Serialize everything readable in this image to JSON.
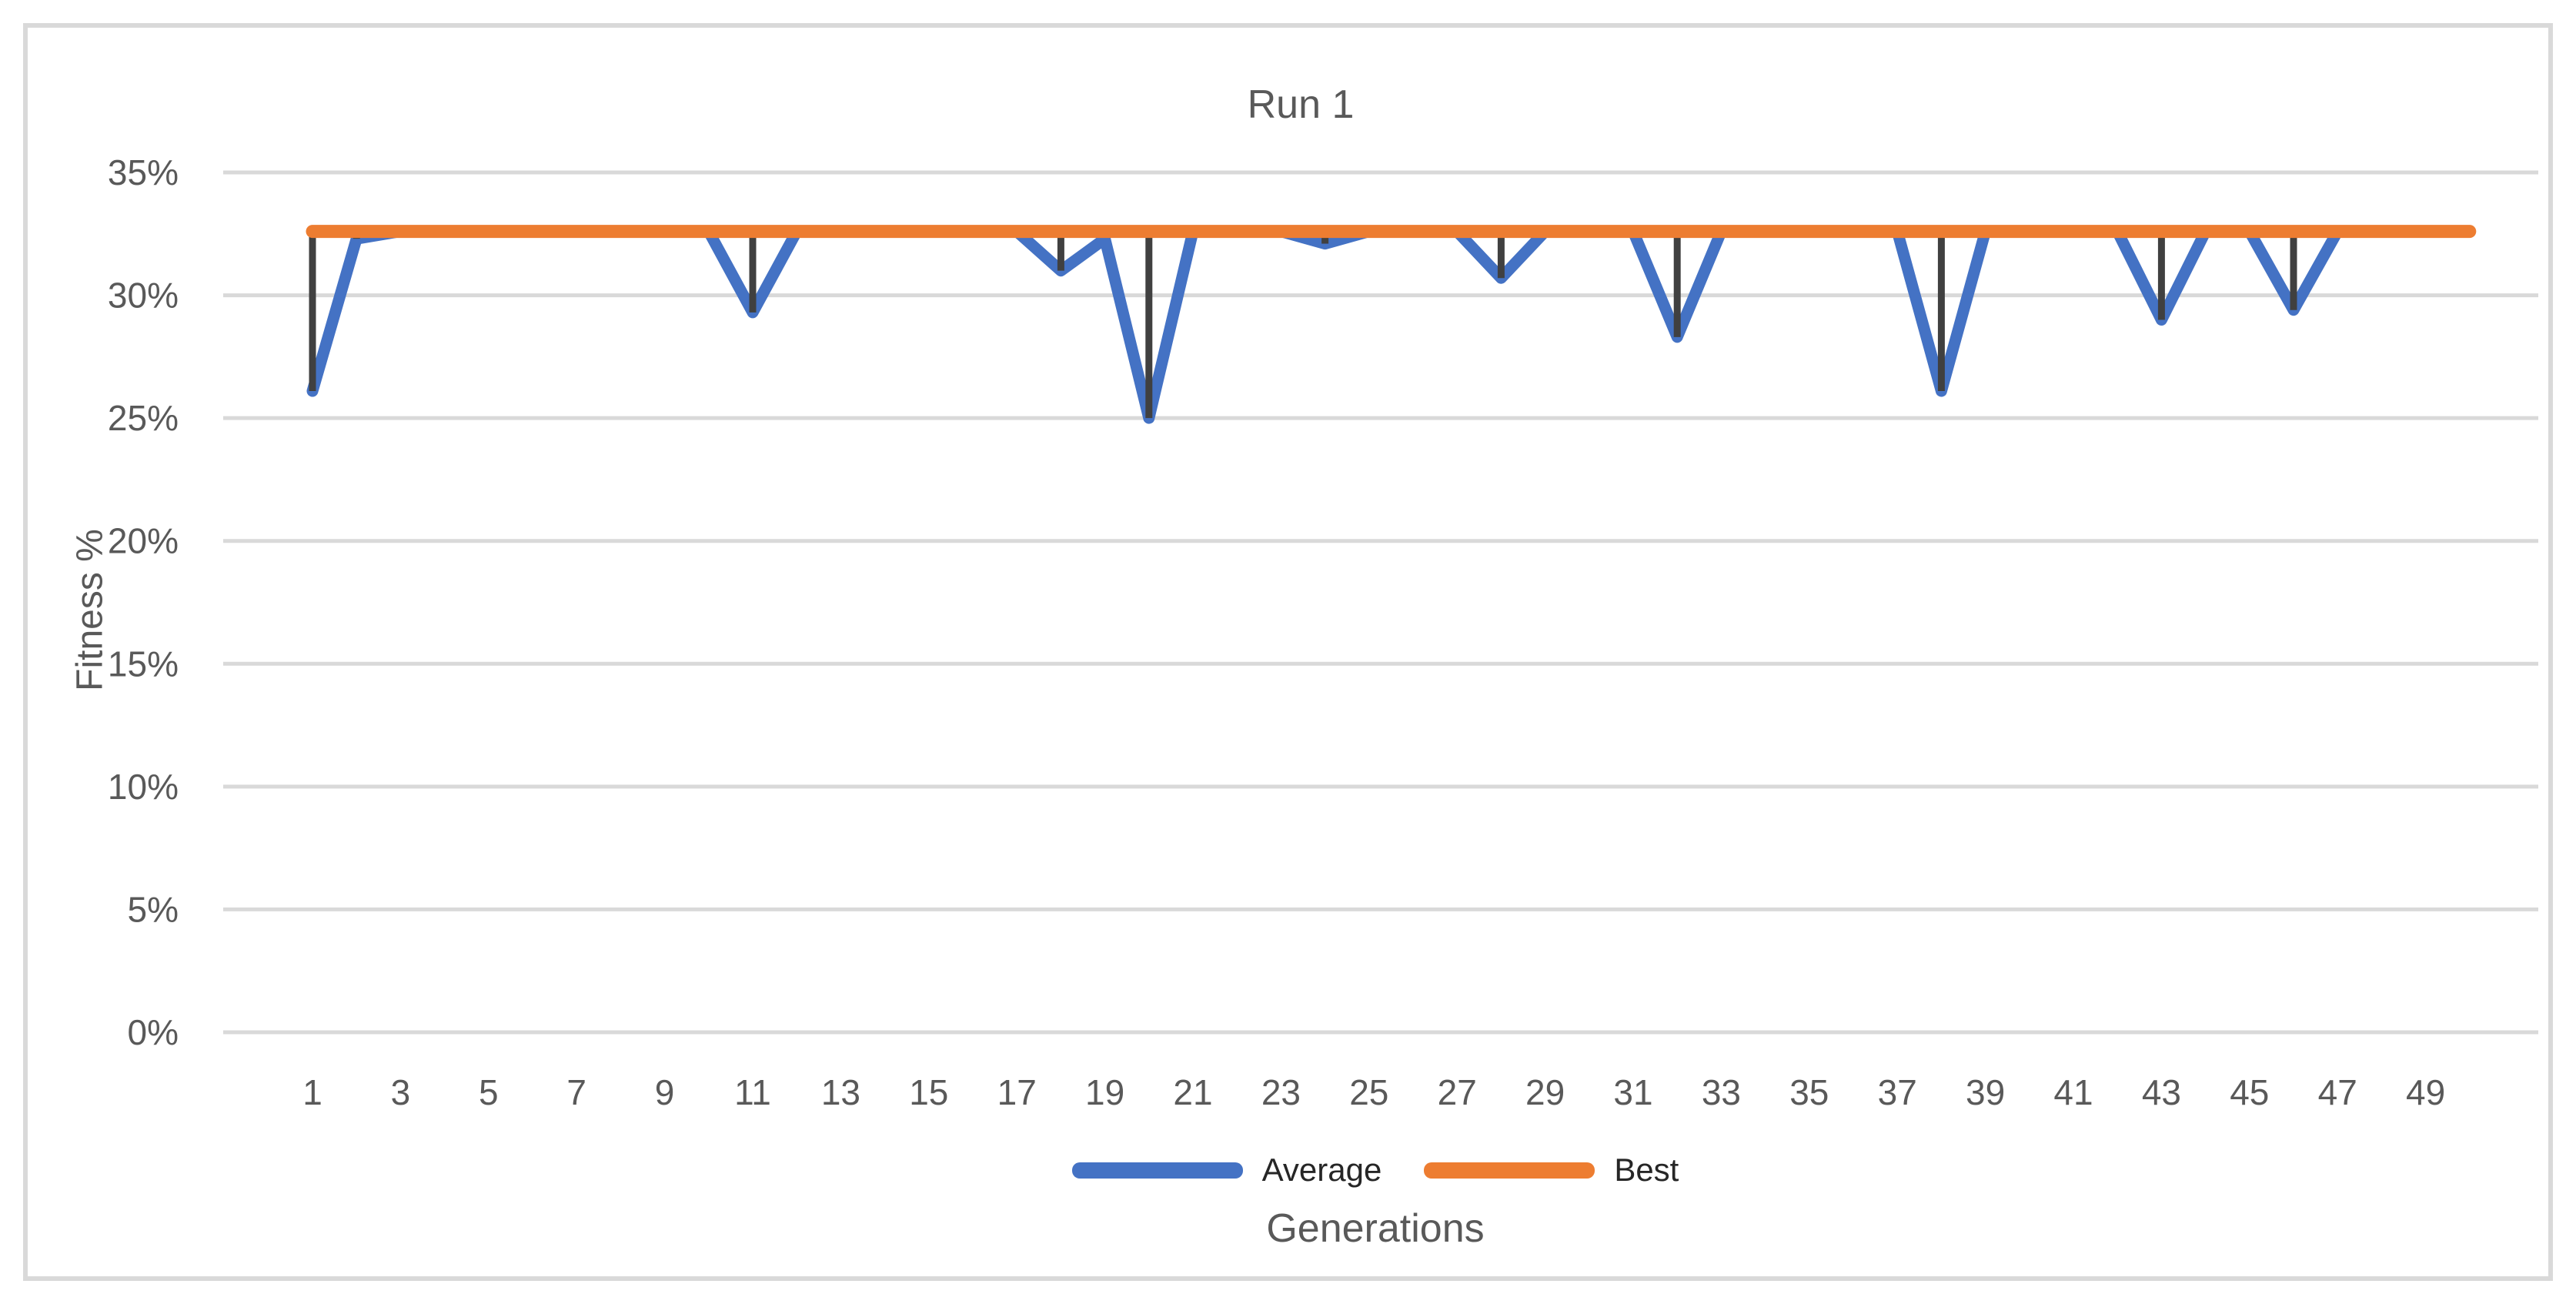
{
  "chart_data": {
    "type": "line",
    "title": "Run 1",
    "xlabel": "Generations",
    "ylabel": "Fitness %",
    "grid": true,
    "legend_position": "bottom",
    "ylim": [
      0,
      35
    ],
    "y_ticks": {
      "values": [
        0,
        5,
        10,
        15,
        20,
        25,
        30,
        35
      ],
      "labels": [
        "0%",
        "5%",
        "10%",
        "15%",
        "20%",
        "25%",
        "30%",
        "35%"
      ]
    },
    "x_tick_labels": [
      1,
      3,
      5,
      7,
      9,
      11,
      13,
      15,
      17,
      19,
      21,
      23,
      25,
      27,
      29,
      31,
      33,
      35,
      37,
      39,
      41,
      43,
      45,
      47,
      49
    ],
    "x": [
      1,
      2,
      3,
      4,
      5,
      6,
      7,
      8,
      9,
      10,
      11,
      12,
      13,
      14,
      15,
      16,
      17,
      18,
      19,
      20,
      21,
      22,
      23,
      24,
      25,
      26,
      27,
      28,
      29,
      30,
      31,
      32,
      33,
      34,
      35,
      36,
      37,
      38,
      39,
      40,
      41,
      42,
      43,
      44,
      45,
      46,
      47,
      48,
      49,
      50
    ],
    "series": [
      {
        "name": "Average",
        "color": "#4472C4",
        "values": [
          26.1,
          32.3,
          32.6,
          32.6,
          32.6,
          32.6,
          32.6,
          32.6,
          32.6,
          32.6,
          29.3,
          32.6,
          32.6,
          32.6,
          32.6,
          32.6,
          32.6,
          31.0,
          32.3,
          25.0,
          32.6,
          32.6,
          32.6,
          32.1,
          32.6,
          32.6,
          32.6,
          30.7,
          32.6,
          32.6,
          32.6,
          28.3,
          32.6,
          32.6,
          32.6,
          32.6,
          32.6,
          26.1,
          32.6,
          32.6,
          32.6,
          32.6,
          29.0,
          32.6,
          32.6,
          29.4,
          32.6,
          32.6,
          32.6,
          32.6
        ]
      },
      {
        "name": "Best",
        "color": "#ED7D31",
        "values": [
          32.6,
          32.6,
          32.6,
          32.6,
          32.6,
          32.6,
          32.6,
          32.6,
          32.6,
          32.6,
          32.6,
          32.6,
          32.6,
          32.6,
          32.6,
          32.6,
          32.6,
          32.6,
          32.6,
          32.6,
          32.6,
          32.6,
          32.6,
          32.6,
          32.6,
          32.6,
          32.6,
          32.6,
          32.6,
          32.6,
          32.6,
          32.6,
          32.6,
          32.6,
          32.6,
          32.6,
          32.6,
          32.6,
          32.6,
          32.6,
          32.6,
          32.6,
          32.6,
          32.6,
          32.6,
          32.6,
          32.6,
          32.6,
          32.6,
          32.6
        ]
      }
    ],
    "high_low_lines": {
      "color": "#404040",
      "at_x": [
        1,
        2,
        11,
        18,
        20,
        24,
        28,
        32,
        38,
        43,
        46
      ]
    },
    "colors": {
      "gridline": "#D9D9D9",
      "axis_text": "#595959",
      "legend_text": "#262626",
      "frame_border": "#D9D9D9"
    }
  }
}
